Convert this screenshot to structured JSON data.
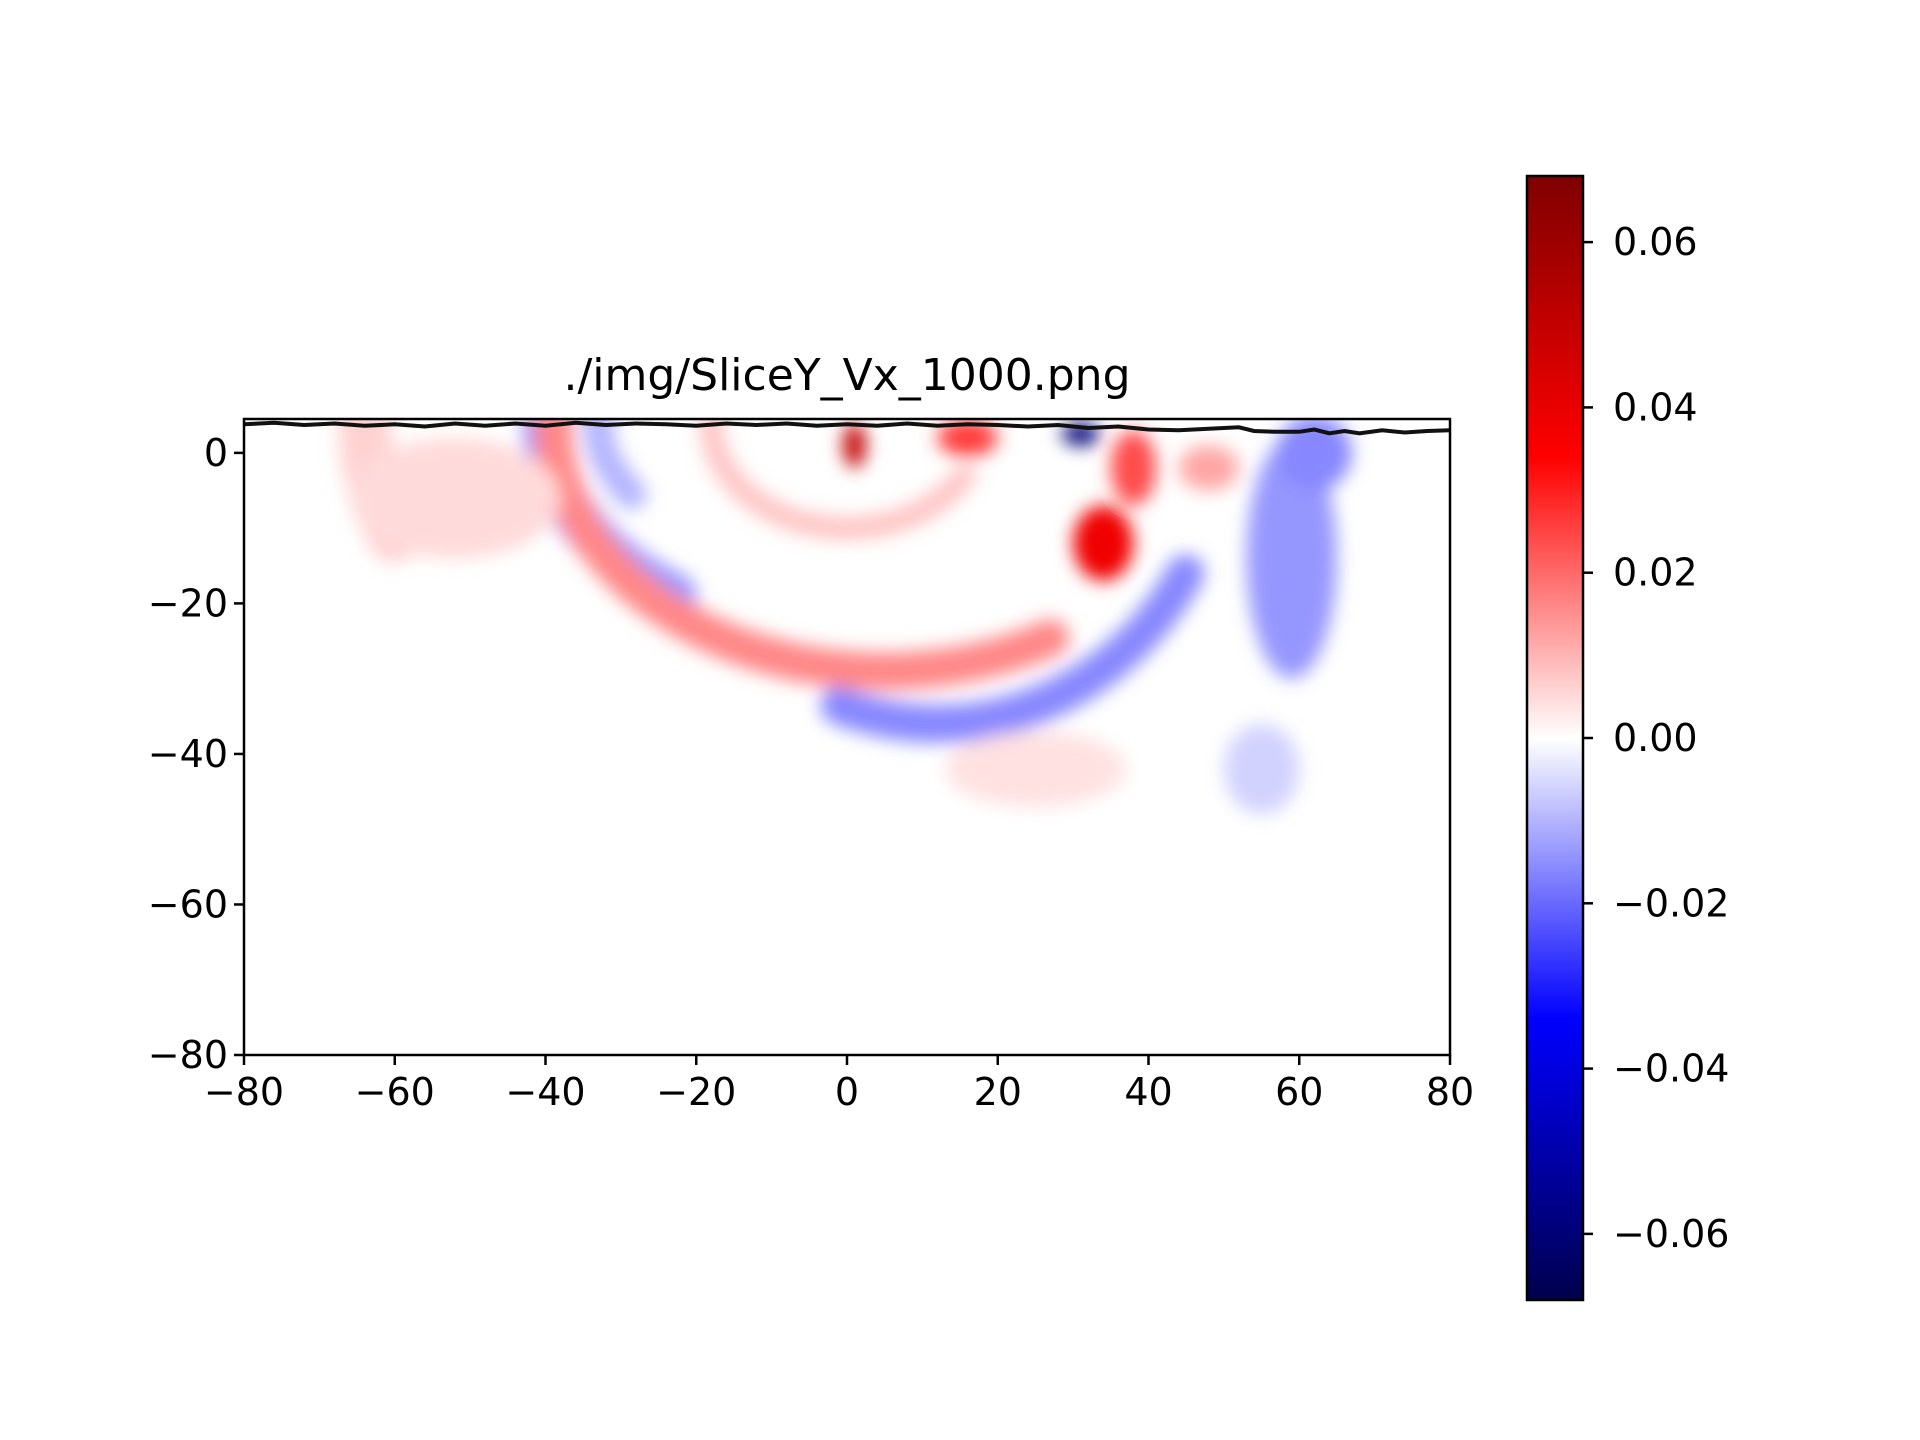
{
  "chart_data": {
    "type": "heatmap",
    "title": "./img/SliceY_Vx_1000.png",
    "xlabel": "",
    "ylabel": "",
    "xlim": [
      -80,
      80
    ],
    "ylim": [
      -80,
      4.5
    ],
    "x_ticks": [
      {
        "value": -80,
        "label": "−80"
      },
      {
        "value": -60,
        "label": "−60"
      },
      {
        "value": -40,
        "label": "−40"
      },
      {
        "value": -20,
        "label": "−20"
      },
      {
        "value": 0,
        "label": "0"
      },
      {
        "value": 20,
        "label": "20"
      },
      {
        "value": 40,
        "label": "40"
      },
      {
        "value": 60,
        "label": "60"
      },
      {
        "value": 80,
        "label": "80"
      }
    ],
    "y_ticks": [
      {
        "value": 0,
        "label": "0"
      },
      {
        "value": -20,
        "label": "−20"
      },
      {
        "value": -40,
        "label": "−40"
      },
      {
        "value": -60,
        "label": "−60"
      },
      {
        "value": -80,
        "label": "−80"
      }
    ],
    "colorbar": {
      "colormap": "seismic",
      "range": [
        -0.068,
        0.068
      ],
      "ticks": [
        {
          "value": 0.06,
          "label": "0.06"
        },
        {
          "value": 0.04,
          "label": "0.04"
        },
        {
          "value": 0.02,
          "label": "0.02"
        },
        {
          "value": 0.0,
          "label": "0.00"
        },
        {
          "value": -0.02,
          "label": "−0.02"
        },
        {
          "value": -0.04,
          "label": "−0.04"
        },
        {
          "value": -0.06,
          "label": "−0.06"
        }
      ]
    },
    "field_features": [
      {
        "kind": "arc",
        "cx": 0,
        "cy": 4,
        "rx": 64,
        "ry": 44,
        "from_deg": 120,
        "to_deg": 200,
        "width": 7,
        "value": 0.006
      },
      {
        "kind": "arc",
        "cx": 0,
        "cy": 4,
        "rx": 40,
        "ry": 28,
        "from_deg": 160,
        "to_deg": 235,
        "width": 6,
        "value": -0.014
      },
      {
        "kind": "arc",
        "cx": 0,
        "cy": 4,
        "rx": 33,
        "ry": 19,
        "from_deg": 140,
        "to_deg": 210,
        "width": 4,
        "value": -0.01
      },
      {
        "kind": "arc",
        "cx": 5,
        "cy": 4,
        "rx": 44,
        "ry": 33,
        "from_deg": 165,
        "to_deg": 300,
        "width": 5,
        "value": 0.016
      },
      {
        "kind": "arc",
        "cx": 12,
        "cy": 4,
        "rx": 38,
        "ry": 40,
        "from_deg": 250,
        "to_deg": 330,
        "width": 5,
        "value": -0.016
      },
      {
        "kind": "arc",
        "cx": 0,
        "cy": 4,
        "rx": 18,
        "ry": 14,
        "from_deg": 120,
        "to_deg": 330,
        "width": 3,
        "value": 0.008
      },
      {
        "kind": "blob",
        "x": 34,
        "y": -12,
        "sx": 4,
        "sy": 5,
        "value": 0.038
      },
      {
        "kind": "blob",
        "x": 38,
        "y": -2,
        "sx": 3,
        "sy": 5,
        "value": 0.024
      },
      {
        "kind": "blob",
        "x": 16,
        "y": 2,
        "sx": 4,
        "sy": 2.5,
        "value": 0.026
      },
      {
        "kind": "blob",
        "x": 31,
        "y": 2.5,
        "sx": 2.5,
        "sy": 1.5,
        "value": -0.06
      },
      {
        "kind": "blob",
        "x": 1,
        "y": 1,
        "sx": 1.5,
        "sy": 3,
        "value": 0.05
      },
      {
        "kind": "blob",
        "x": 59,
        "y": -14,
        "sx": 6,
        "sy": 16,
        "value": -0.014
      },
      {
        "kind": "blob",
        "x": 62,
        "y": 0,
        "sx": 5,
        "sy": 5,
        "value": -0.016
      },
      {
        "kind": "blob",
        "x": 48,
        "y": -2,
        "sx": 4,
        "sy": 3,
        "value": 0.012
      },
      {
        "kind": "blob",
        "x": 25,
        "y": -42,
        "sx": 12,
        "sy": 5,
        "value": 0.004
      },
      {
        "kind": "blob",
        "x": 55,
        "y": -42,
        "sx": 5,
        "sy": 6,
        "value": -0.006
      },
      {
        "kind": "blob",
        "x": -52,
        "y": -6,
        "sx": 14,
        "sy": 8,
        "value": 0.005
      }
    ],
    "surface_line": [
      [
        -80,
        3.8
      ],
      [
        -76,
        4.0
      ],
      [
        -72,
        3.7
      ],
      [
        -68,
        3.9
      ],
      [
        -64,
        3.6
      ],
      [
        -60,
        3.8
      ],
      [
        -56,
        3.5
      ],
      [
        -52,
        3.9
      ],
      [
        -48,
        3.6
      ],
      [
        -44,
        3.9
      ],
      [
        -40,
        3.6
      ],
      [
        -36,
        4.0
      ],
      [
        -32,
        3.7
      ],
      [
        -28,
        3.9
      ],
      [
        -24,
        3.8
      ],
      [
        -20,
        3.6
      ],
      [
        -16,
        3.9
      ],
      [
        -12,
        3.7
      ],
      [
        -8,
        3.9
      ],
      [
        -4,
        3.6
      ],
      [
        0,
        3.8
      ],
      [
        4,
        3.6
      ],
      [
        8,
        3.9
      ],
      [
        12,
        3.6
      ],
      [
        16,
        3.8
      ],
      [
        20,
        3.7
      ],
      [
        24,
        3.5
      ],
      [
        28,
        3.7
      ],
      [
        32,
        3.3
      ],
      [
        36,
        3.5
      ],
      [
        40,
        3.1
      ],
      [
        44,
        3.0
      ],
      [
        48,
        3.2
      ],
      [
        52,
        3.4
      ],
      [
        54,
        2.9
      ],
      [
        57,
        2.8
      ],
      [
        60,
        2.8
      ],
      [
        62,
        3.1
      ],
      [
        64,
        2.6
      ],
      [
        66,
        2.9
      ],
      [
        68,
        2.6
      ],
      [
        71,
        3.0
      ],
      [
        74,
        2.7
      ],
      [
        77,
        2.9
      ],
      [
        80,
        3.0
      ]
    ]
  }
}
